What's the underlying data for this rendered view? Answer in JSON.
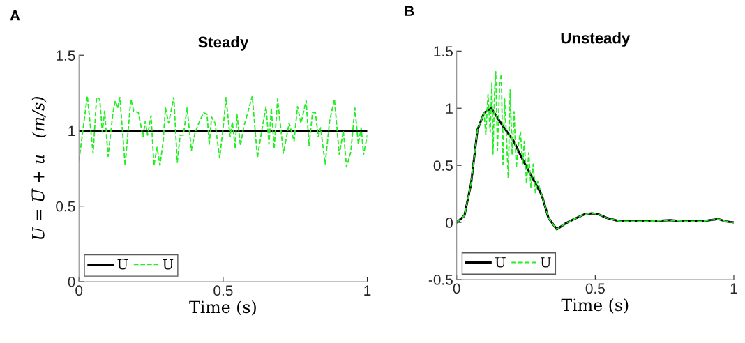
{
  "chart_data": [
    {
      "type": "line",
      "title": "Steady",
      "xlabel": "Time (s)",
      "ylabel": "U = U̅ + u   (m/s)",
      "annotations": [
        "A"
      ],
      "xlim": [
        0,
        1
      ],
      "ylim": [
        0,
        1.5
      ],
      "xticks": [
        0,
        0.5,
        1
      ],
      "yticks": [
        0,
        0.5,
        1,
        1.5
      ],
      "legend": "bottom left",
      "grid": false,
      "series": [
        {
          "name": "U̅",
          "color": "#000000",
          "line_style": "solid",
          "x": [
            0,
            1
          ],
          "values": [
            1,
            1
          ]
        },
        {
          "name": "U",
          "color": "#22ee22",
          "line_style": "dashed",
          "x": [
            0,
            0.029,
            0.049,
            0.061,
            0.072,
            0.081,
            0.089,
            0.101,
            0.118,
            0.126,
            0.134,
            0.142,
            0.16,
            0.18,
            0.19,
            0.206,
            0.222,
            0.23,
            0.238,
            0.25,
            0.26,
            0.271,
            0.281,
            0.292,
            0.3,
            0.311,
            0.329,
            0.341,
            0.351,
            0.362,
            0.375,
            0.39,
            0.403,
            0.418,
            0.432,
            0.444,
            0.452,
            0.46,
            0.472,
            0.488,
            0.5,
            0.51,
            0.524,
            0.532,
            0.542,
            0.548,
            0.56,
            0.571,
            0.601,
            0.619,
            0.633,
            0.649,
            0.659,
            0.667,
            0.677,
            0.689,
            0.709,
            0.729,
            0.746,
            0.758,
            0.77,
            0.788,
            0.798,
            0.81,
            0.82,
            0.83,
            0.838,
            0.854,
            0.869,
            0.886,
            0.903,
            0.917,
            0.928,
            0.943,
            0.957,
            0.969,
            0.979,
            0.987,
            1.0
          ],
          "values": [
            0.8,
            1.23,
            0.85,
            1.22,
            1.21,
            0.99,
            1.13,
            0.83,
            1.12,
            1.2,
            1.15,
            1.22,
            0.77,
            1.21,
            1.13,
            1.12,
            0.96,
            1.06,
            0.97,
            1.1,
            0.77,
            0.89,
            0.77,
            0.93,
            1.15,
            1.05,
            1.22,
            0.79,
            0.97,
            0.97,
            1.15,
            0.87,
            0.99,
            1.06,
            1.12,
            1.11,
            0.91,
            1.09,
            1.05,
            0.82,
            1.02,
            1.22,
            0.96,
            1.06,
            0.88,
            1.11,
            0.9,
            1.02,
            1.23,
            0.82,
            0.99,
            1.16,
            0.91,
            1.15,
            0.88,
            1.21,
            0.85,
            1.05,
            0.93,
            1.16,
            1.05,
            1.2,
            0.9,
            1.12,
            1.12,
            0.96,
            1.02,
            0.78,
            1.06,
            1.21,
            0.84,
            1.0,
            0.76,
            0.86,
            1.15,
            0.91,
            1.02,
            0.84,
            0.97
          ]
        }
      ]
    },
    {
      "type": "line",
      "title": "Unsteady",
      "xlabel": "Time (s)",
      "annotations": [
        "B"
      ],
      "xlim": [
        0,
        1
      ],
      "ylim": [
        -0.5,
        1.5
      ],
      "xticks": [
        0,
        0.5,
        1
      ],
      "yticks": [
        -0.5,
        0,
        0.5,
        1,
        1.5
      ],
      "legend": "bottom left",
      "grid": false,
      "series": [
        {
          "name": "U̅",
          "color": "#000000",
          "line_style": "solid",
          "x": [
            0,
            0.028,
            0.052,
            0.075,
            0.099,
            0.125,
            0.165,
            0.206,
            0.238,
            0.278,
            0.307,
            0.331,
            0.361,
            0.392,
            0.424,
            0.46,
            0.488,
            0.513,
            0.541,
            0.589,
            0.69,
            0.771,
            0.819,
            0.884,
            0.944,
            0.969,
            1.0
          ],
          "values": [
            0,
            0.06,
            0.34,
            0.81,
            0.96,
            1.0,
            0.85,
            0.71,
            0.55,
            0.37,
            0.24,
            0.04,
            -0.06,
            -0.01,
            0.03,
            0.07,
            0.08,
            0.07,
            0.04,
            0.01,
            0.01,
            0.02,
            0.01,
            0.01,
            0.03,
            0.01,
            0
          ]
        },
        {
          "name": "U",
          "color": "#22ee22",
          "line_style": "dashed",
          "x": [
            0,
            0.028,
            0.052,
            0.075,
            0.099,
            0.105,
            0.113,
            0.121,
            0.127,
            0.131,
            0.137,
            0.141,
            0.147,
            0.155,
            0.161,
            0.167,
            0.173,
            0.18,
            0.186,
            0.193,
            0.2,
            0.207,
            0.215,
            0.222,
            0.23,
            0.238,
            0.244,
            0.252,
            0.26,
            0.268,
            0.276,
            0.284,
            0.292,
            0.307,
            0.331,
            0.361,
            0.392,
            0.424,
            0.46,
            0.488,
            0.513,
            0.541,
            0.589,
            0.69,
            0.771,
            0.819,
            0.884,
            0.944,
            0.969,
            1.0
          ],
          "values": [
            0,
            0.06,
            0.34,
            0.81,
            0.96,
            0.77,
            1.12,
            0.79,
            1.22,
            0.6,
            1.16,
            1.32,
            0.63,
            1.2,
            1.3,
            0.51,
            1.08,
            0.73,
            0.39,
            1.16,
            0.59,
            0.97,
            0.48,
            0.67,
            0.79,
            0.51,
            0.71,
            0.34,
            0.61,
            0.3,
            0.51,
            0.26,
            0.36,
            0.24,
            0.04,
            -0.06,
            -0.01,
            0.03,
            0.07,
            0.08,
            0.07,
            0.04,
            0.01,
            0.01,
            0.02,
            0.01,
            0.01,
            0.03,
            0.01,
            0
          ]
        }
      ]
    }
  ]
}
